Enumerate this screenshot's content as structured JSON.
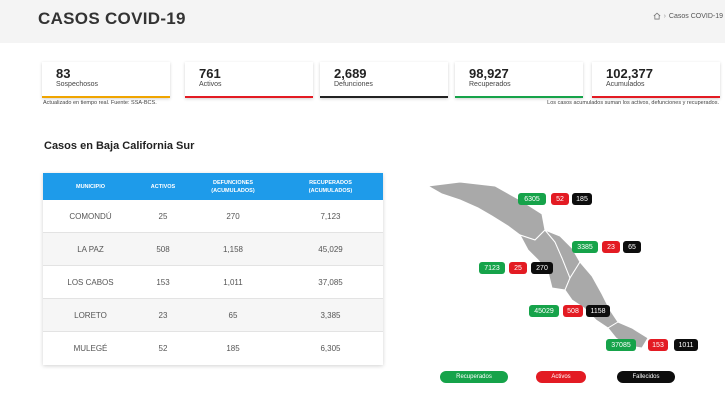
{
  "header": {
    "title": "CASOS COVID-19",
    "breadcrumb_current": "Casos COVID-19"
  },
  "stats": [
    {
      "value": "83",
      "label": "Sospechosos",
      "color": "#f0a500"
    },
    {
      "value": "761",
      "label": "Activos",
      "color": "#e31b23"
    },
    {
      "value": "2,689",
      "label": "Defunciones",
      "color": "#222222"
    },
    {
      "value": "98,927",
      "label": "Recuperados",
      "color": "#16a34a"
    },
    {
      "value": "102,377",
      "label": "Acumulados",
      "color": "#e31b23"
    }
  ],
  "notes": {
    "left": "Actualizado en tiempo real. Fuente: SSA-BCS.",
    "right": "Los casos acumulados suman los activos, defunciones y recuperados."
  },
  "section_title": "Casos en Baja California Sur",
  "table": {
    "headers": [
      "MUNICIPIO",
      "ACTIVOS",
      "DEFUNCIONES\n(ACUMULADOS)",
      "RECUPERADOS\n(ACUMULADOS)"
    ],
    "rows": [
      [
        "COMONDÚ",
        "25",
        "270",
        "7,123"
      ],
      [
        "LA PAZ",
        "508",
        "1,158",
        "45,029"
      ],
      [
        "LOS CABOS",
        "153",
        "1,011",
        "37,085"
      ],
      [
        "LORETO",
        "23",
        "65",
        "3,385"
      ],
      [
        "MULEGÉ",
        "52",
        "185",
        "6,305"
      ]
    ]
  },
  "map_badges": {
    "mulege": {
      "recuperados": "6305",
      "activos": "52",
      "fallecidos": "185"
    },
    "loreto": {
      "recuperados": "3385",
      "activos": "23",
      "fallecidos": "65"
    },
    "comondu": {
      "recuperados": "7123",
      "activos": "25",
      "fallecidos": "270"
    },
    "lapaz": {
      "recuperados": "45029",
      "activos": "508",
      "fallecidos": "1158"
    },
    "loscabos": {
      "recuperados": "37085",
      "activos": "153",
      "fallecidos": "1011"
    }
  },
  "legend": {
    "recuperados": "Recuperados",
    "activos": "Activos",
    "fallecidos": "Fallecidos"
  },
  "colors": {
    "green": "#16a34a",
    "red": "#e31b23",
    "black": "#0d0d0d",
    "table_header": "#1e9bea",
    "map_fill": "#a9a9a9"
  }
}
